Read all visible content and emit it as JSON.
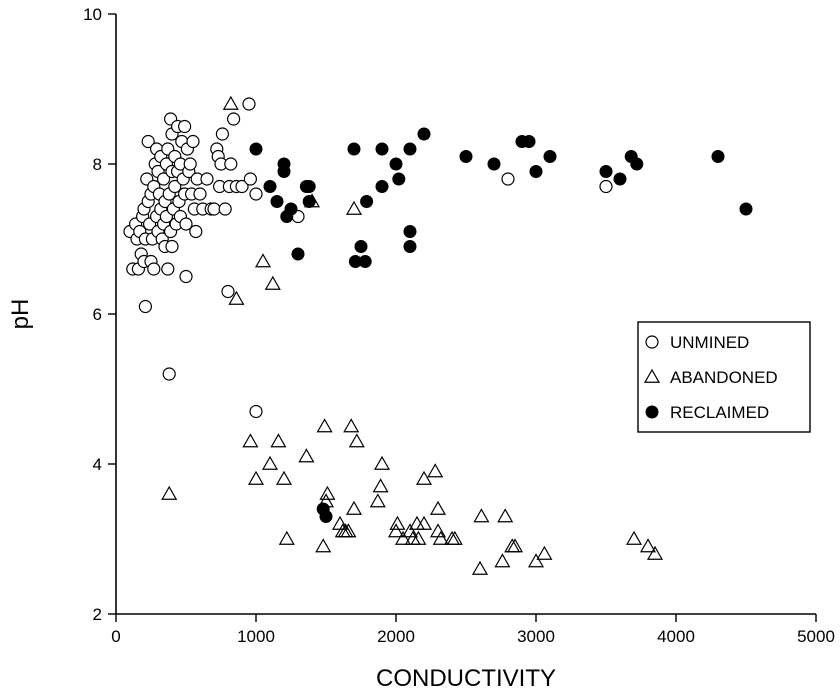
{
  "chart_data": {
    "type": "scatter",
    "title": "",
    "xlabel": "CONDUCTIVITY",
    "ylabel": "pH",
    "xlim": [
      0,
      5000
    ],
    "ylim": [
      2,
      10
    ],
    "x_ticks": [
      "0",
      "1000",
      "2000",
      "3000",
      "4000",
      "5000"
    ],
    "y_ticks": [
      "2",
      "4",
      "6",
      "8",
      "10"
    ],
    "grid": false,
    "legend_position": "right",
    "series": [
      {
        "name": "UNMINED",
        "marker": "open-circle",
        "points": [
          [
            100,
            7.1
          ],
          [
            120,
            6.6
          ],
          [
            140,
            7.2
          ],
          [
            150,
            7.0
          ],
          [
            160,
            6.6
          ],
          [
            170,
            7.1
          ],
          [
            180,
            6.8
          ],
          [
            190,
            7.3
          ],
          [
            200,
            7.4
          ],
          [
            200,
            6.7
          ],
          [
            210,
            7.0
          ],
          [
            210,
            6.1
          ],
          [
            220,
            7.8
          ],
          [
            230,
            8.3
          ],
          [
            230,
            7.5
          ],
          [
            240,
            7.2
          ],
          [
            250,
            7.6
          ],
          [
            250,
            6.7
          ],
          [
            260,
            7.0
          ],
          [
            270,
            7.7
          ],
          [
            270,
            6.6
          ],
          [
            280,
            8.0
          ],
          [
            290,
            8.2
          ],
          [
            290,
            7.3
          ],
          [
            300,
            7.9
          ],
          [
            300,
            7.1
          ],
          [
            310,
            7.6
          ],
          [
            320,
            8.1
          ],
          [
            320,
            7.4
          ],
          [
            330,
            7.0
          ],
          [
            340,
            7.8
          ],
          [
            340,
            7.2
          ],
          [
            350,
            6.9
          ],
          [
            350,
            7.5
          ],
          [
            360,
            8.0
          ],
          [
            360,
            7.3
          ],
          [
            370,
            6.6
          ],
          [
            370,
            8.2
          ],
          [
            380,
            7.6
          ],
          [
            380,
            5.2
          ],
          [
            390,
            8.6
          ],
          [
            390,
            7.1
          ],
          [
            400,
            8.4
          ],
          [
            400,
            7.9
          ],
          [
            400,
            6.9
          ],
          [
            410,
            7.4
          ],
          [
            420,
            8.1
          ],
          [
            420,
            7.7
          ],
          [
            430,
            7.2
          ],
          [
            440,
            8.5
          ],
          [
            440,
            7.9
          ],
          [
            450,
            7.5
          ],
          [
            460,
            8.0
          ],
          [
            460,
            7.3
          ],
          [
            470,
            8.3
          ],
          [
            480,
            7.8
          ],
          [
            490,
            8.5
          ],
          [
            490,
            7.6
          ],
          [
            500,
            7.2
          ],
          [
            500,
            6.5
          ],
          [
            510,
            8.2
          ],
          [
            520,
            7.9
          ],
          [
            530,
            8.0
          ],
          [
            540,
            7.6
          ],
          [
            550,
            8.3
          ],
          [
            560,
            7.4
          ],
          [
            570,
            7.1
          ],
          [
            580,
            7.8
          ],
          [
            600,
            7.6
          ],
          [
            620,
            7.4
          ],
          [
            650,
            7.8
          ],
          [
            680,
            7.4
          ],
          [
            700,
            7.4
          ],
          [
            720,
            8.2
          ],
          [
            730,
            8.1
          ],
          [
            740,
            7.7
          ],
          [
            750,
            8.0
          ],
          [
            760,
            8.4
          ],
          [
            780,
            7.4
          ],
          [
            800,
            6.3
          ],
          [
            810,
            7.7
          ],
          [
            820,
            8.0
          ],
          [
            840,
            8.6
          ],
          [
            860,
            7.7
          ],
          [
            900,
            7.7
          ],
          [
            950,
            8.8
          ],
          [
            960,
            7.8
          ],
          [
            1000,
            4.7
          ],
          [
            1000,
            7.6
          ],
          [
            1300,
            7.3
          ],
          [
            2800,
            7.8
          ],
          [
            3500,
            7.7
          ]
        ]
      },
      {
        "name": "ABANDONED",
        "marker": "open-triangle",
        "points": [
          [
            380,
            3.6
          ],
          [
            820,
            8.8
          ],
          [
            860,
            6.2
          ],
          [
            960,
            4.3
          ],
          [
            1000,
            3.8
          ],
          [
            1050,
            6.7
          ],
          [
            1100,
            4.0
          ],
          [
            1120,
            6.4
          ],
          [
            1160,
            4.3
          ],
          [
            1200,
            3.8
          ],
          [
            1220,
            3.0
          ],
          [
            1360,
            4.1
          ],
          [
            1400,
            7.5
          ],
          [
            1480,
            2.9
          ],
          [
            1490,
            4.5
          ],
          [
            1500,
            3.5
          ],
          [
            1510,
            3.6
          ],
          [
            1600,
            3.2
          ],
          [
            1620,
            3.1
          ],
          [
            1640,
            3.1
          ],
          [
            1660,
            3.1
          ],
          [
            1680,
            4.5
          ],
          [
            1700,
            3.4
          ],
          [
            1700,
            7.4
          ],
          [
            1720,
            4.3
          ],
          [
            1870,
            3.5
          ],
          [
            1890,
            3.7
          ],
          [
            1900,
            4.0
          ],
          [
            2000,
            3.1
          ],
          [
            2010,
            3.2
          ],
          [
            2050,
            3.0
          ],
          [
            2100,
            3.1
          ],
          [
            2120,
            3.0
          ],
          [
            2150,
            3.2
          ],
          [
            2160,
            3.0
          ],
          [
            2200,
            3.2
          ],
          [
            2200,
            3.8
          ],
          [
            2280,
            3.9
          ],
          [
            2300,
            3.4
          ],
          [
            2300,
            3.1
          ],
          [
            2320,
            3.0
          ],
          [
            2400,
            3.0
          ],
          [
            2420,
            3.0
          ],
          [
            2600,
            2.6
          ],
          [
            2610,
            3.3
          ],
          [
            2760,
            2.7
          ],
          [
            2780,
            3.3
          ],
          [
            2830,
            2.9
          ],
          [
            2850,
            2.9
          ],
          [
            3000,
            2.7
          ],
          [
            3060,
            2.8
          ],
          [
            3700,
            3.0
          ],
          [
            3800,
            2.9
          ],
          [
            3850,
            2.8
          ]
        ]
      },
      {
        "name": "RECLAIMED",
        "marker": "filled-circle",
        "points": [
          [
            1000,
            8.2
          ],
          [
            1100,
            7.7
          ],
          [
            1150,
            7.5
          ],
          [
            1200,
            8.0
          ],
          [
            1200,
            7.9
          ],
          [
            1220,
            7.3
          ],
          [
            1250,
            7.4
          ],
          [
            1300,
            6.8
          ],
          [
            1360,
            7.7
          ],
          [
            1380,
            7.7
          ],
          [
            1380,
            7.5
          ],
          [
            1480,
            3.4
          ],
          [
            1500,
            3.3
          ],
          [
            1700,
            8.2
          ],
          [
            1710,
            6.7
          ],
          [
            1750,
            6.9
          ],
          [
            1780,
            6.7
          ],
          [
            1790,
            7.5
          ],
          [
            1900,
            8.2
          ],
          [
            1900,
            7.7
          ],
          [
            2000,
            8.0
          ],
          [
            2020,
            7.8
          ],
          [
            2100,
            8.2
          ],
          [
            2100,
            7.1
          ],
          [
            2100,
            6.9
          ],
          [
            2200,
            8.4
          ],
          [
            2500,
            8.1
          ],
          [
            2700,
            8.0
          ],
          [
            2900,
            8.3
          ],
          [
            2950,
            8.3
          ],
          [
            3000,
            7.9
          ],
          [
            3100,
            8.1
          ],
          [
            3500,
            7.9
          ],
          [
            3600,
            7.8
          ],
          [
            3680,
            8.1
          ],
          [
            3720,
            8.0
          ],
          [
            4300,
            8.1
          ],
          [
            4500,
            7.4
          ]
        ]
      }
    ]
  }
}
